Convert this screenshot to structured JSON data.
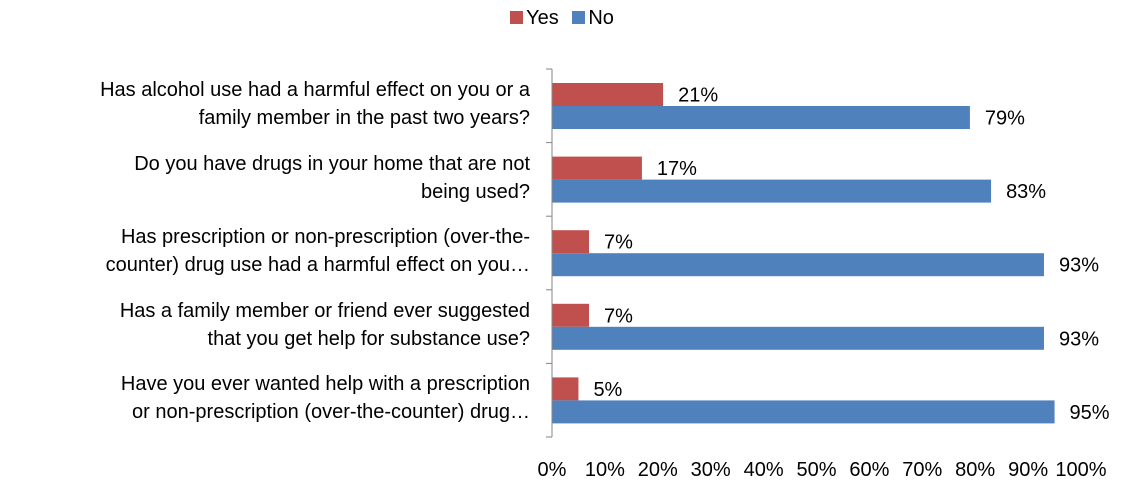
{
  "legend": [
    {
      "name": "Yes",
      "color": "#c0504d"
    },
    {
      "name": "No",
      "color": "#4f81bd"
    }
  ],
  "chart_data": {
    "type": "bar",
    "orientation": "horizontal",
    "categories": [
      [
        "Has alcohol use had a harmful effect on you or a",
        "family member in the past two years?"
      ],
      [
        "Do you have drugs in your home that are not",
        "being used?"
      ],
      [
        "Has prescription or non-prescription (over-the-",
        "counter) drug use had a harmful effect on you…"
      ],
      [
        "Has a family member or friend ever suggested",
        "that you get help for substance use?"
      ],
      [
        "Have you ever wanted help with a prescription",
        "or non-prescription (over-the-counter) drug…"
      ]
    ],
    "series": [
      {
        "name": "Yes",
        "color": "#c0504d",
        "values": [
          21,
          17,
          7,
          7,
          5
        ],
        "labels": [
          "21%",
          "17%",
          "7%",
          "7%",
          "5%"
        ]
      },
      {
        "name": "No",
        "color": "#4f81bd",
        "values": [
          79,
          83,
          93,
          93,
          95
        ],
        "labels": [
          "79%",
          "83%",
          "93%",
          "93%",
          "95%"
        ]
      }
    ],
    "xlim": [
      0,
      100
    ],
    "xticks": [
      "0%",
      "10%",
      "20%",
      "30%",
      "40%",
      "50%",
      "60%",
      "70%",
      "80%",
      "90%",
      "100%"
    ],
    "grid": false,
    "legend_position": "top"
  }
}
